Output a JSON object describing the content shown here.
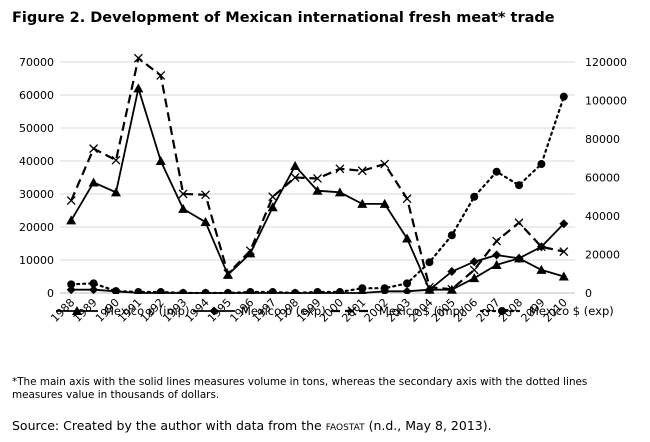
{
  "figure": {
    "title": "Figure 2. Development of Mexican international fresh meat* trade",
    "note": "*The main axis with the solid lines measures volume in tons, whereas the secondary axis with the dotted lines measures value in thousands of dollars.",
    "source_prefix": "Source: Created by the author with data from the ",
    "source_org": "faostat",
    "source_suffix": " (n.d., May 8, 2013)."
  },
  "chart_data": {
    "type": "line",
    "x": [
      "1988",
      "1989",
      "1990",
      "1991",
      "1992",
      "1993",
      "1994",
      "1995",
      "1996",
      "1997",
      "1998",
      "1999",
      "2000",
      "2001",
      "2002",
      "2003",
      "2004",
      "2005",
      "2006",
      "2007",
      "2008",
      "2009",
      "2010"
    ],
    "y_left": {
      "min": 0,
      "max": 70000,
      "step": 10000,
      "ticks": [
        "0",
        "10000",
        "20000",
        "30000",
        "40000",
        "50000",
        "60000",
        "70000"
      ]
    },
    "y_right": {
      "min": 0,
      "max": 120000,
      "step": 20000,
      "ticks": [
        "0",
        "20000",
        "40000",
        "60000",
        "80000",
        "100000",
        "120000"
      ]
    },
    "grid": "horizontal",
    "legend_position": "bottom",
    "series": [
      {
        "name": "Mexico p (imp)",
        "axis": "left",
        "style": "solid",
        "marker": "triangle",
        "values": [
          22000,
          33500,
          30500,
          62000,
          40000,
          25500,
          21500,
          5500,
          12000,
          26000,
          38500,
          31000,
          30500,
          27000,
          27000,
          16500,
          1000,
          1000,
          4500,
          8500,
          10500,
          7000,
          5000
        ]
      },
      {
        "name": "Mexico p (exp)",
        "axis": "left",
        "style": "solid",
        "marker": "diamond",
        "values": [
          1000,
          1000,
          500,
          0,
          0,
          0,
          0,
          0,
          0,
          0,
          0,
          0,
          0,
          0,
          500,
          500,
          1000,
          6500,
          9500,
          11500,
          10500,
          14000,
          21000
        ]
      },
      {
        "name": "Mexico $ (imp)",
        "axis": "right",
        "style": "dashed",
        "marker": "x",
        "values": [
          48000,
          75000,
          69000,
          122000,
          113000,
          51500,
          51000,
          10000,
          22000,
          50000,
          60000,
          59500,
          64500,
          63500,
          67000,
          49000,
          3000,
          2000,
          12000,
          27000,
          36500,
          24000,
          21500
        ]
      },
      {
        "name": "Mexico $ (exp)",
        "axis": "right",
        "style": "dotted",
        "marker": "circle",
        "values": [
          4500,
          5000,
          1000,
          500,
          500,
          0,
          0,
          0,
          500,
          500,
          0,
          500,
          500,
          2500,
          2500,
          5000,
          16000,
          30000,
          50000,
          63000,
          56000,
          67000,
          102000
        ]
      }
    ]
  }
}
